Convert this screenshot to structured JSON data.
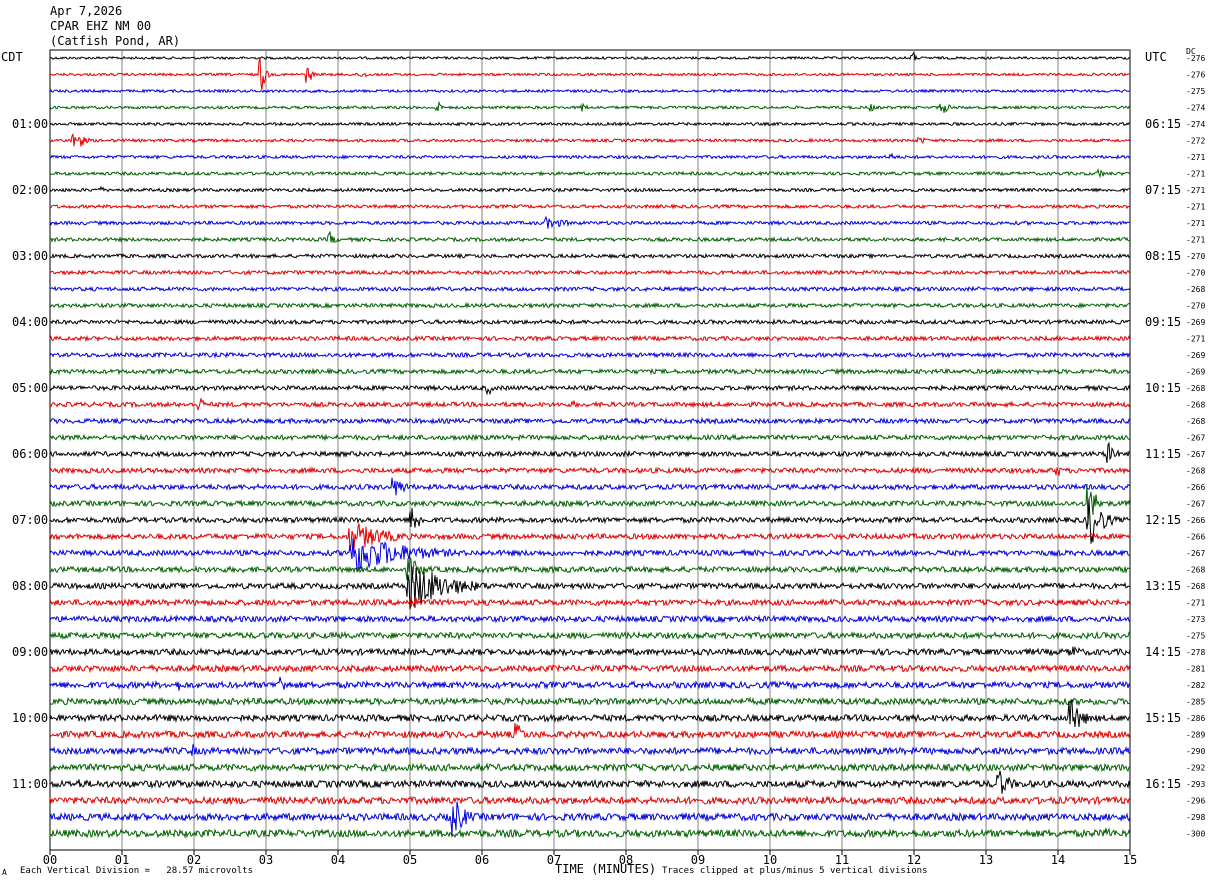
{
  "header": {
    "date": "Apr 7,2026",
    "station": "CPAR EHZ NM 00",
    "location": "(Catfish Pond, AR)"
  },
  "left_axis_title": "CDT",
  "right_axis_title": "UTC",
  "dc_title": "DC",
  "left_time_labels": [
    "01:00",
    "02:00",
    "03:00",
    "04:00",
    "05:00",
    "06:00",
    "07:00",
    "08:00",
    "09:00",
    "10:00",
    "11:00"
  ],
  "right_time_labels": [
    "06:15",
    "07:15",
    "08:15",
    "09:15",
    "10:15",
    "11:15",
    "12:15",
    "13:15",
    "14:15",
    "15:15",
    "16:15"
  ],
  "dc_values": [
    "-276",
    "-276",
    "-275",
    "-274",
    "-274",
    "-272",
    "-271",
    "-271",
    "-271",
    "-271",
    "-271",
    "-271",
    "-270",
    "-270",
    "-268",
    "-270",
    "-269",
    "-271",
    "-269",
    "-269",
    "-268",
    "-268",
    "-268",
    "-267",
    "-267",
    "-268",
    "-266",
    "-267",
    "-266",
    "-266",
    "-267",
    "-268",
    "-268",
    "-271",
    "-273",
    "-275",
    "-278",
    "-281",
    "-282",
    "-285",
    "-286",
    "-289",
    "-290",
    "-292",
    "-293",
    "-296",
    "-298",
    "-300"
  ],
  "x_axis": {
    "ticks": [
      "00",
      "01",
      "02",
      "03",
      "04",
      "05",
      "06",
      "07",
      "08",
      "09",
      "10",
      "11",
      "12",
      "13",
      "14",
      "15"
    ],
    "title": "TIME (MINUTES)"
  },
  "footer": {
    "scale": "Each Vertical Division =   28.57 microvolts",
    "clip_note": "Traces clipped at plus/minus 5 vertical divisions",
    "corner": "A"
  },
  "colors": {
    "cycle": [
      "#000000",
      "#e00000",
      "#0000e0",
      "#006000"
    ],
    "grid": "#808080"
  },
  "events": [
    {
      "row": 0,
      "minute": 12.0,
      "amp": 6,
      "dur": 0.1
    },
    {
      "row": 1,
      "minute": 2.95,
      "amp": 18,
      "dur": 0.15
    },
    {
      "row": 1,
      "minute": 3.6,
      "amp": 9,
      "dur": 0.15
    },
    {
      "row": 1,
      "minute": 4.35,
      "amp": 5,
      "dur": 0.15
    },
    {
      "row": 3,
      "minute": 5.4,
      "amp": 8,
      "dur": 0.1
    },
    {
      "row": 3,
      "minute": 7.4,
      "amp": 5,
      "dur": 0.2
    },
    {
      "row": 3,
      "minute": 11.4,
      "amp": 5,
      "dur": 0.2
    },
    {
      "row": 3,
      "minute": 12.4,
      "amp": 6,
      "dur": 0.4
    },
    {
      "row": 5,
      "minute": 0.35,
      "amp": 14,
      "dur": 0.3
    },
    {
      "row": 5,
      "minute": 12.1,
      "amp": 4,
      "dur": 0.3
    },
    {
      "row": 6,
      "minute": 11.7,
      "amp": 4,
      "dur": 0.2
    },
    {
      "row": 7,
      "minute": 14.6,
      "amp": 6,
      "dur": 0.1
    },
    {
      "row": 8,
      "minute": 0.7,
      "amp": 4,
      "dur": 0.2
    },
    {
      "row": 10,
      "minute": 6.9,
      "amp": 6,
      "dur": 1.0
    },
    {
      "row": 11,
      "minute": 3.9,
      "amp": 8,
      "dur": 0.2
    },
    {
      "row": 17,
      "minute": 12.8,
      "amp": 5,
      "dur": 0.1
    },
    {
      "row": 20,
      "minute": 6.1,
      "amp": 7,
      "dur": 0.15
    },
    {
      "row": 21,
      "minute": 2.1,
      "amp": 7,
      "dur": 0.2
    },
    {
      "row": 21,
      "minute": 7.3,
      "amp": 4,
      "dur": 0.1
    },
    {
      "row": 24,
      "minute": 14.7,
      "amp": 12,
      "dur": 0.3
    },
    {
      "row": 25,
      "minute": 14.0,
      "amp": 7,
      "dur": 0.15
    },
    {
      "row": 26,
      "minute": 4.8,
      "amp": 10,
      "dur": 0.5
    },
    {
      "row": 27,
      "minute": 14.45,
      "amp": 22,
      "dur": 0.3
    },
    {
      "row": 28,
      "minute": 14.45,
      "amp": 28,
      "dur": 0.5
    },
    {
      "row": 28,
      "minute": 5.05,
      "amp": 16,
      "dur": 0.3
    },
    {
      "row": 29,
      "minute": 4.2,
      "amp": 16,
      "dur": 1.4
    },
    {
      "row": 30,
      "minute": 4.2,
      "amp": 22,
      "dur": 2.2
    },
    {
      "row": 31,
      "minute": 5.0,
      "amp": 12,
      "dur": 0.6
    },
    {
      "row": 32,
      "minute": 5.0,
      "amp": 26,
      "dur": 1.6
    },
    {
      "row": 33,
      "minute": 5.05,
      "amp": 10,
      "dur": 0.2
    },
    {
      "row": 36,
      "minute": 14.2,
      "amp": 8,
      "dur": 0.4
    },
    {
      "row": 38,
      "minute": 3.2,
      "amp": 10,
      "dur": 0.4
    },
    {
      "row": 38,
      "minute": 1.8,
      "amp": 6,
      "dur": 0.1
    },
    {
      "row": 40,
      "minute": 14.2,
      "amp": 18,
      "dur": 0.5
    },
    {
      "row": 41,
      "minute": 6.5,
      "amp": 12,
      "dur": 0.3
    },
    {
      "row": 42,
      "minute": 2.0,
      "amp": 7,
      "dur": 0.15
    },
    {
      "row": 42,
      "minute": 12.8,
      "amp": 5,
      "dur": 0.2
    },
    {
      "row": 44,
      "minute": 13.2,
      "amp": 14,
      "dur": 0.5
    },
    {
      "row": 44,
      "minute": 0.45,
      "amp": 6,
      "dur": 0.1
    },
    {
      "row": 46,
      "minute": 5.6,
      "amp": 22,
      "dur": 0.5
    },
    {
      "row": 47,
      "minute": 14.7,
      "amp": 10,
      "dur": 0.1
    }
  ]
}
